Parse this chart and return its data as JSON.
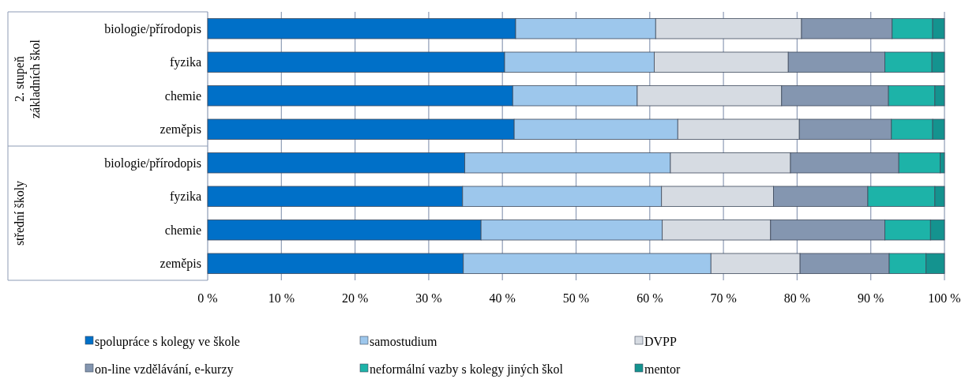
{
  "chart_data": {
    "type": "bar",
    "orientation": "horizontal",
    "stacked": true,
    "categories": [
      "biologie/přírodopis",
      "fyzika",
      "chemie",
      "zeměpis",
      "biologie/přírodopis",
      "fyzika",
      "chemie",
      "zeměpis"
    ],
    "annotations": [
      "2. stupeň\nzákladních škol",
      "střední školy"
    ],
    "series": [
      {
        "name": "spolupráce s kolegy ve škole",
        "color": "#0070c8",
        "values": [
          41.8,
          40.3,
          41.4,
          41.6,
          34.9,
          34.6,
          37.1,
          34.7
        ]
      },
      {
        "name": "samostudium",
        "color": "#9dc7ec",
        "values": [
          19.0,
          20.3,
          16.9,
          22.2,
          27.9,
          27.0,
          24.6,
          33.6
        ]
      },
      {
        "name": "DVPP",
        "color": "#d6dbe2",
        "values": [
          19.8,
          18.2,
          19.6,
          16.5,
          16.3,
          15.2,
          14.7,
          12.1
        ]
      },
      {
        "name": "on-line vzdělávání, e-kurzy",
        "color": "#8496b0",
        "values": [
          12.3,
          13.1,
          14.5,
          12.5,
          14.7,
          12.8,
          15.5,
          12.1
        ]
      },
      {
        "name": "neformální vazby s kolegy jiných škol",
        "color": "#1db3a8",
        "values": [
          5.5,
          6.4,
          6.3,
          5.6,
          5.6,
          9.1,
          6.2,
          5.0
        ]
      },
      {
        "name": "mentor",
        "color": "#14938f",
        "values": [
          1.6,
          1.7,
          1.3,
          1.6,
          0.6,
          1.3,
          1.9,
          2.5
        ]
      }
    ],
    "xlim": [
      0,
      100
    ],
    "xticks": [
      {
        "value": 0,
        "label": "0 %"
      },
      {
        "value": 10,
        "label": "10 %"
      },
      {
        "value": 20,
        "label": "20 %"
      },
      {
        "value": 30,
        "label": "30 %"
      },
      {
        "value": 40,
        "label": "40 %"
      },
      {
        "value": 50,
        "label": "50 %"
      },
      {
        "value": 60,
        "label": "60 %"
      },
      {
        "value": 70,
        "label": "70 %"
      },
      {
        "value": 80,
        "label": "80 %"
      },
      {
        "value": 90,
        "label": "90 %"
      },
      {
        "value": 100,
        "label": "100 %"
      }
    ],
    "grid": "x",
    "legend": "bottom"
  }
}
